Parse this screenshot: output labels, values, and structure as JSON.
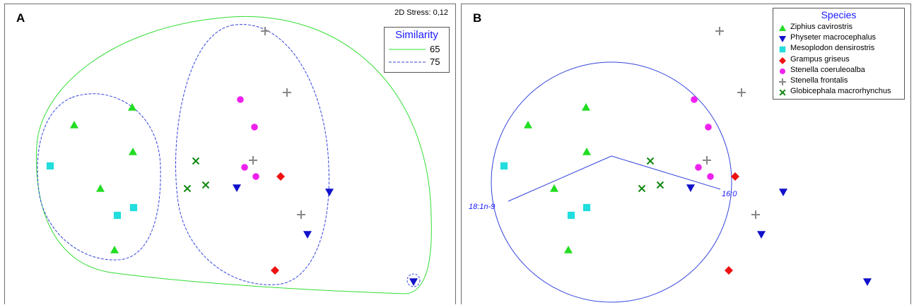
{
  "chart_data": [
    {
      "type": "scatter",
      "panel_label": "A",
      "stress_label": "2D Stress: 0,12",
      "legend": {
        "title": "Similarity",
        "entries": [
          {
            "label": "65",
            "color": "#33dd33",
            "dashed": false
          },
          {
            "label": "75",
            "color": "#3344dd",
            "dashed": true
          }
        ]
      },
      "x_range": [
        0,
        639
      ],
      "y_range": [
        0,
        426
      ],
      "points": [
        {
          "species": "Ziphius cavirostris",
          "x": 180,
          "y": 146
        },
        {
          "species": "Ziphius cavirostris",
          "x": 98,
          "y": 171
        },
        {
          "species": "Ziphius cavirostris",
          "x": 181,
          "y": 209
        },
        {
          "species": "Ziphius cavirostris",
          "x": 135,
          "y": 261
        },
        {
          "species": "Ziphius cavirostris",
          "x": 155,
          "y": 348
        },
        {
          "species": "Mesoplodon densirostris",
          "x": 64,
          "y": 229
        },
        {
          "species": "Mesoplodon densirostris",
          "x": 182,
          "y": 288
        },
        {
          "species": "Mesoplodon densirostris",
          "x": 159,
          "y": 299
        },
        {
          "species": "Globicephala macrorhynchus",
          "x": 270,
          "y": 222
        },
        {
          "species": "Globicephala macrorhynchus",
          "x": 284,
          "y": 256
        },
        {
          "species": "Globicephala macrorhynchus",
          "x": 258,
          "y": 261
        },
        {
          "species": "Stenella frontalis",
          "x": 368,
          "y": 38
        },
        {
          "species": "Stenella frontalis",
          "x": 399,
          "y": 125
        },
        {
          "species": "Stenella frontalis",
          "x": 351,
          "y": 221
        },
        {
          "species": "Stenella frontalis",
          "x": 419,
          "y": 298
        },
        {
          "species": "Stenella coeruleoalba",
          "x": 333,
          "y": 135
        },
        {
          "species": "Stenella coeruleoalba",
          "x": 353,
          "y": 174
        },
        {
          "species": "Stenella coeruleoalba",
          "x": 339,
          "y": 231
        },
        {
          "species": "Stenella coeruleoalba",
          "x": 355,
          "y": 244
        },
        {
          "species": "Grampus griseus",
          "x": 390,
          "y": 244
        },
        {
          "species": "Grampus griseus",
          "x": 382,
          "y": 377
        },
        {
          "species": "Physeter macrocephalus",
          "x": 328,
          "y": 260
        },
        {
          "species": "Physeter macrocephalus",
          "x": 459,
          "y": 266
        },
        {
          "species": "Physeter macrocephalus",
          "x": 428,
          "y": 326
        },
        {
          "species": "Physeter macrocephalus",
          "x": 578,
          "y": 393
        }
      ]
    },
    {
      "type": "scatter",
      "panel_label": "B",
      "legend": {
        "title": "Species",
        "entries": [
          {
            "label": "Ziphius cavirostris",
            "marker": "triangle-up",
            "color": "#22dd22"
          },
          {
            "label": "Physeter macrocephalus",
            "marker": "triangle-down",
            "color": "#1111cc"
          },
          {
            "label": "Mesoplodon densirostris",
            "marker": "square",
            "color": "#22dddd"
          },
          {
            "label": "Grampus griseus",
            "marker": "diamond",
            "color": "#ee1111"
          },
          {
            "label": "Stenella coeruleoalba",
            "marker": "circle",
            "color": "#ee22ee"
          },
          {
            "label": "Stenella frontalis",
            "marker": "plus",
            "color": "#888888"
          },
          {
            "label": "Globicephala macrorhynchus",
            "marker": "cross",
            "color": "#118811"
          }
        ]
      },
      "vectors": [
        {
          "label": "18:1n-9"
        },
        {
          "label": "16:0"
        }
      ],
      "x_range": [
        0,
        637
      ],
      "y_range": [
        0,
        426
      ],
      "points": [
        {
          "species": "Ziphius cavirostris",
          "x": 176,
          "y": 146
        },
        {
          "species": "Ziphius cavirostris",
          "x": 94,
          "y": 171
        },
        {
          "species": "Ziphius cavirostris",
          "x": 177,
          "y": 209
        },
        {
          "species": "Ziphius cavirostris",
          "x": 131,
          "y": 261
        },
        {
          "species": "Ziphius cavirostris",
          "x": 151,
          "y": 348
        },
        {
          "species": "Mesoplodon densirostris",
          "x": 60,
          "y": 229
        },
        {
          "species": "Mesoplodon densirostris",
          "x": 177,
          "y": 288
        },
        {
          "species": "Mesoplodon densirostris",
          "x": 155,
          "y": 299
        },
        {
          "species": "Globicephala macrorhynchus",
          "x": 267,
          "y": 222
        },
        {
          "species": "Globicephala macrorhynchus",
          "x": 281,
          "y": 256
        },
        {
          "species": "Globicephala macrorhynchus",
          "x": 255,
          "y": 261
        },
        {
          "species": "Stenella frontalis",
          "x": 365,
          "y": 38
        },
        {
          "species": "Stenella frontalis",
          "x": 396,
          "y": 125
        },
        {
          "species": "Stenella frontalis",
          "x": 347,
          "y": 221
        },
        {
          "species": "Stenella frontalis",
          "x": 416,
          "y": 298
        },
        {
          "species": "Stenella coeruleoalba",
          "x": 329,
          "y": 135
        },
        {
          "species": "Stenella coeruleoalba",
          "x": 349,
          "y": 174
        },
        {
          "species": "Stenella coeruleoalba",
          "x": 335,
          "y": 231
        },
        {
          "species": "Stenella coeruleoalba",
          "x": 352,
          "y": 244
        },
        {
          "species": "Grampus griseus",
          "x": 387,
          "y": 244
        },
        {
          "species": "Grampus griseus",
          "x": 378,
          "y": 377
        },
        {
          "species": "Physeter macrocephalus",
          "x": 324,
          "y": 260
        },
        {
          "species": "Physeter macrocephalus",
          "x": 455,
          "y": 266
        },
        {
          "species": "Physeter macrocephalus",
          "x": 424,
          "y": 326
        },
        {
          "species": "Physeter macrocephalus",
          "x": 574,
          "y": 393
        }
      ]
    }
  ]
}
